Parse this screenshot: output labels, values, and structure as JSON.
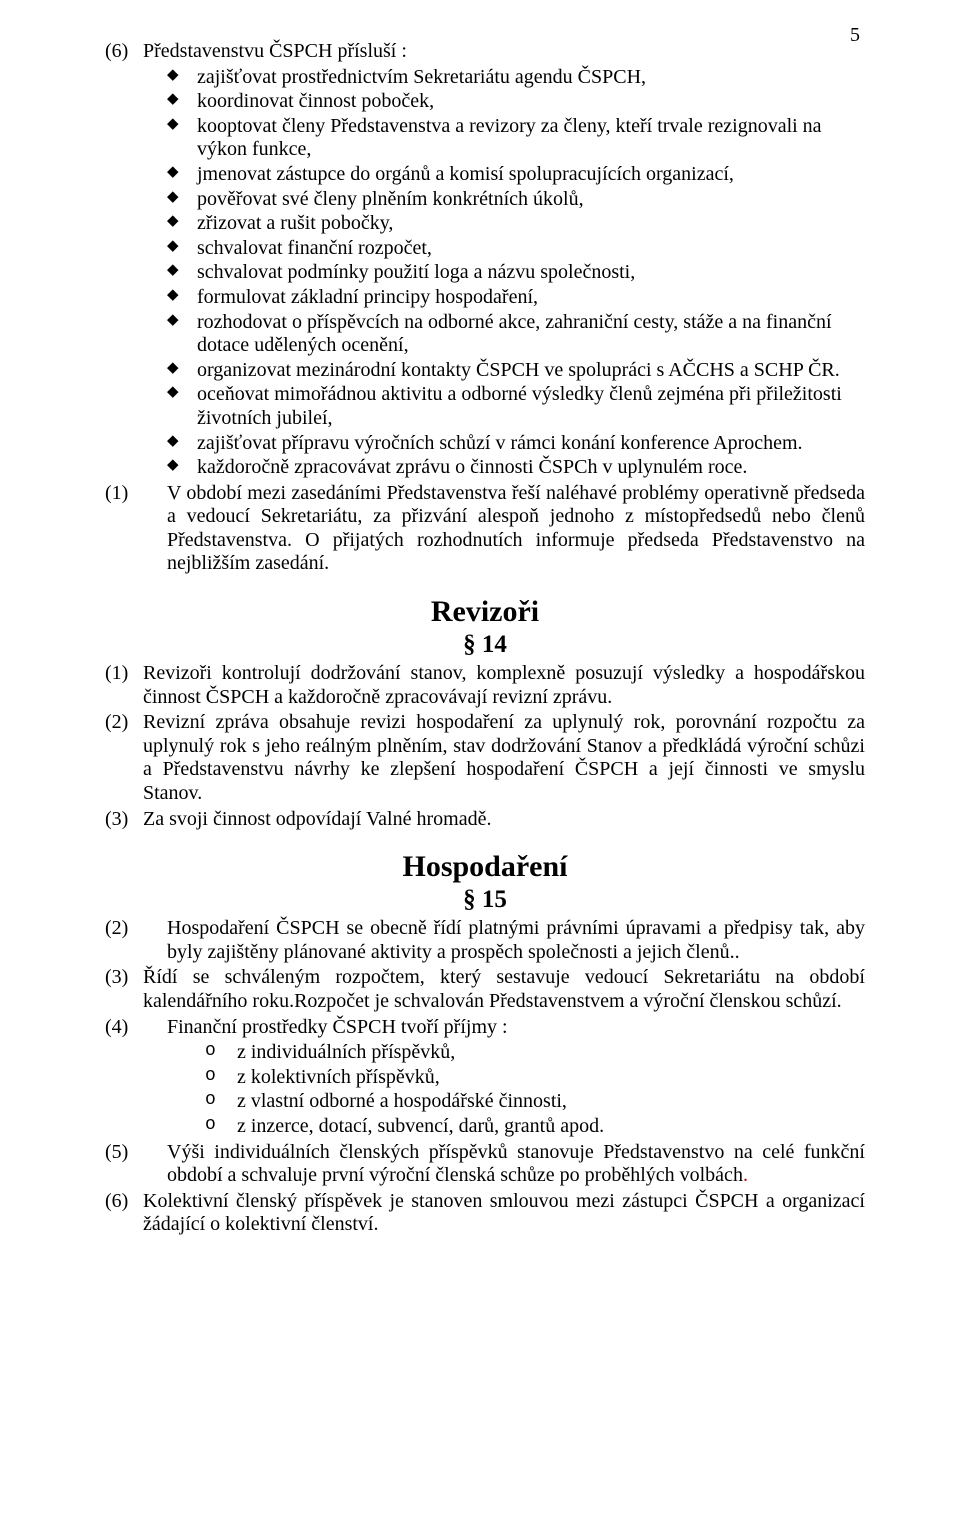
{
  "page_number": "5",
  "section6": {
    "num": "(6)",
    "intro": "Představenstvu ČSPCH přísluší :",
    "bullets": [
      "zajišťovat prostřednictvím Sekretariátu agendu  ČSPCH,",
      "koordinovat činnost poboček,",
      "kooptovat členy Představenstva a revizory za členy, kteří trvale rezignovali na výkon funkce,",
      "jmenovat zástupce do orgánů a komisí spolupracujících organizací,",
      "pověřovat své členy plněním konkrétních úkolů,",
      "zřizovat a rušit pobočky,",
      "schvalovat finanční rozpočet,",
      "schvalovat podmínky použití loga a názvu společnosti,",
      "formulovat základní principy hospodaření,",
      "rozhodovat o příspěvcích na odborné akce, zahraniční cesty, stáže a na  finanční dotace udělených ocenění,",
      "organizovat mezinárodní kontakty ČSPCH ve spolupráci s AČCHS a SCHP ČR.",
      "oceňovat mimořádnou aktivitu a odborné výsledky členů zejména při přiležitosti životních jubileí,",
      "zajišťovat přípravu výročních schůzí v rámci konání konference Aprochem.",
      "každoročně zpracovávat zprávu o činnosti ČSPCh v uplynulém roce."
    ]
  },
  "section6b": {
    "num": "(1)",
    "text": "V období mezi zasedáními Představenstva řeší naléhavé problémy operativně předseda a vedoucí Sekretariátu, za přizvání alespoň jednoho z místopředsedů nebo členů Představenstva. O přijatých rozhodnutích informuje předseda Představenstvo na nejbližším zasedání."
  },
  "heading_revizori": "Revizoři",
  "section14_num": "§ 14",
  "rev1": {
    "num": "(1)",
    "text": "Revizoři kontrolují dodržování stanov, komplexně posuzují výsledky a hospodářskou činnost ČSPCH a každoročně zpracovávají revizní zprávu."
  },
  "rev2": {
    "num": "(2)",
    "text": "Revizní zpráva obsahuje revizi hospodaření za uplynulý rok, porovnání rozpočtu za uplynulý rok s jeho reálným plněním, stav dodržování Stanov a  předkládá výroční schůzi a Představenstvu návrhy ke zlepšení hospodaření ČSPCH a její činnosti ve smyslu Stanov."
  },
  "rev3": {
    "num": "(3)",
    "text": "Za svoji činnost odpovídají Valné hromadě."
  },
  "heading_hospodareni": "Hospodaření",
  "section15_num": "§ 15",
  "hosp2": {
    "num": "(2)",
    "text": "Hospodaření ČSPCH se obecně řídí platnými právními úpravami a předpisy tak, aby byly zajištěny plánované aktivity a prospěch společnosti a jejich členů.."
  },
  "hosp3": {
    "num": "(3)",
    "text": "Řídí se schváleným rozpočtem, který sestavuje vedoucí Sekretariátu na období kalendářního roku.Rozpočet je schvalován Představenstvem a výroční členskou schůzí."
  },
  "hosp4": {
    "num": "(4)",
    "intro": "Finanční prostředky ČSPCH tvoří příjmy :",
    "items": [
      "z individuálních příspěvků,",
      "z kolektivních příspěvků,",
      "z vlastní odborné a hospodářské činnosti,",
      "z inzerce, dotací, subvencí, darů, grantů apod."
    ]
  },
  "hosp5": {
    "num": "(5)",
    "text_before": "Výši individuálních členských příspěvků stanovuje Představenstvo na celé funkční období a schvaluje první výroční členská schůze po proběhlých volbách",
    "dot": "."
  },
  "hosp6": {
    "num": "(6)",
    "text": "Kolektivní členský příspěvek je stanoven smlouvou mezi zástupci ČSPCH a organizací žádající o kolektivní členství."
  }
}
